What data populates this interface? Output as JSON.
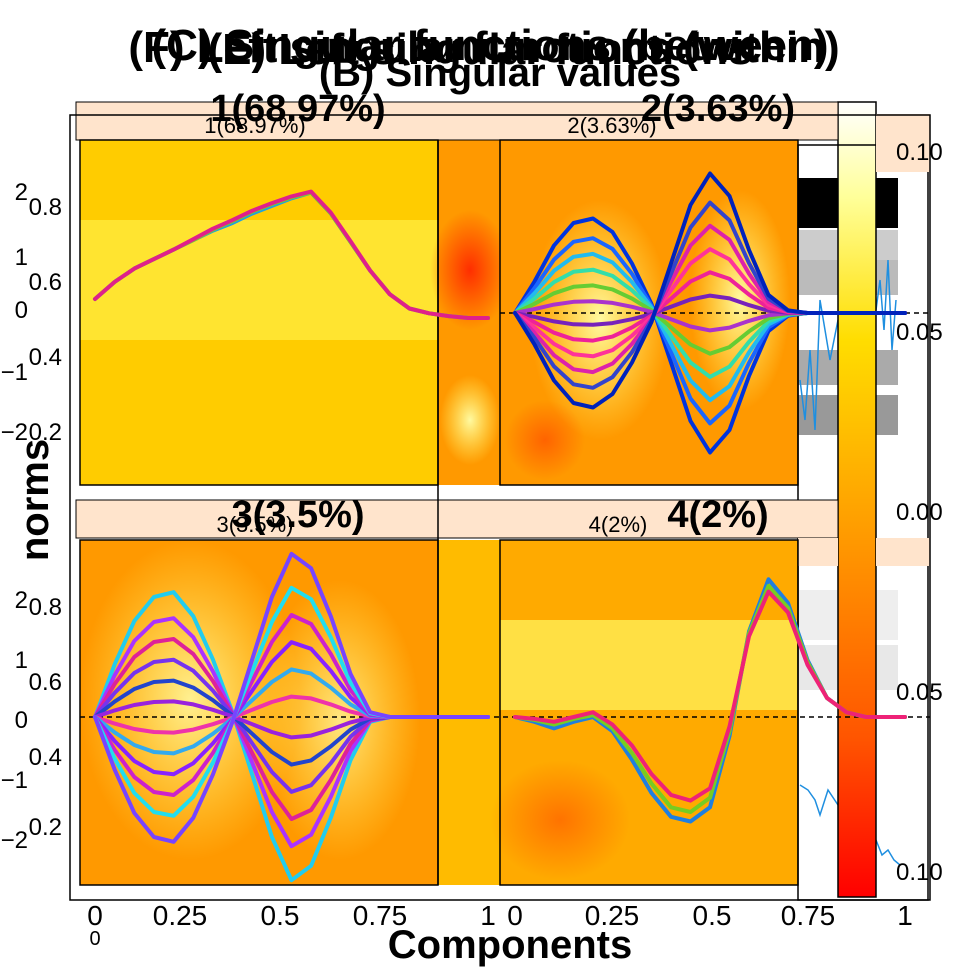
{
  "titles": {
    "F": "(F) Left singular functions (within)",
    "C": "(C) Singular functions (between)",
    "E": "(E) Left singular functions",
    "B": "(B) Singular values"
  },
  "axis": {
    "x_label": "Components",
    "y_label": "norms"
  },
  "chart_data": [
    {
      "id": "panel-1",
      "type": "line",
      "strip_small": "1(68.97%)",
      "strip_bold": "1(68.97%)",
      "xlim": [
        0,
        1
      ],
      "ylim": [
        -2,
        2
      ],
      "x": [
        0,
        0.05,
        0.1,
        0.15,
        0.2,
        0.25,
        0.3,
        0.35,
        0.4,
        0.45,
        0.5,
        0.55,
        0.6,
        0.65,
        0.7,
        0.75,
        0.8,
        0.85,
        0.9,
        0.95,
        1
      ],
      "series": [
        {
          "values": [
            0.2,
            0.38,
            0.52,
            0.62,
            0.72,
            0.82,
            0.92,
            1.0,
            1.1,
            1.18,
            1.26,
            1.32,
            1.1,
            0.8,
            0.5,
            0.25,
            0.1,
            0.05,
            0.02,
            0.0,
            0.0
          ],
          "color": "#1fa0e0"
        },
        {
          "values": [
            0.2,
            0.38,
            0.52,
            0.62,
            0.72,
            0.82,
            0.93,
            1.02,
            1.12,
            1.2,
            1.27,
            1.32,
            1.1,
            0.8,
            0.5,
            0.25,
            0.1,
            0.05,
            0.02,
            0.0,
            0.0
          ],
          "color": "#7fd020"
        },
        {
          "values": [
            0.2,
            0.38,
            0.52,
            0.62,
            0.72,
            0.83,
            0.94,
            1.03,
            1.13,
            1.21,
            1.28,
            1.33,
            1.11,
            0.81,
            0.5,
            0.25,
            0.1,
            0.05,
            0.02,
            0.0,
            0.0
          ],
          "color": "#e0208a"
        }
      ]
    },
    {
      "id": "panel-2",
      "type": "line",
      "strip_small": "2(3.63%)",
      "strip_bold": "2(3.63%)",
      "xlim": [
        0,
        1
      ],
      "ylim": [
        -2,
        2
      ],
      "x": [
        0,
        0.05,
        0.1,
        0.15,
        0.2,
        0.25,
        0.3,
        0.35,
        0.4,
        0.45,
        0.5,
        0.55,
        0.6,
        0.65,
        0.7,
        0.75,
        0.8,
        0.85,
        0.9,
        0.95,
        1
      ],
      "base_shape": [
        0,
        0.35,
        0.75,
        1.0,
        1.05,
        0.9,
        0.55,
        0.1,
        -0.55,
        -1.2,
        -1.55,
        -1.3,
        -0.7,
        -0.2,
        -0.03,
        0,
        0,
        0,
        0,
        0,
        0
      ],
      "amplitudes": [
        1.2,
        0.95,
        0.75,
        0.55,
        0.35,
        0.15,
        -0.15,
        -0.35,
        -0.55,
        -0.75,
        -0.95,
        -1.2
      ],
      "palette": [
        "#0033dd",
        "#1a66ff",
        "#22bbee",
        "#33ddaa",
        "#66cc33",
        "#aa33cc",
        "#7722bb",
        "#ee2299",
        "#ff3399",
        "#dd22aa",
        "#3344cc",
        "#0022bb"
      ]
    },
    {
      "id": "panel-3",
      "type": "line",
      "strip_small": "3(3.5%)",
      "strip_bold": "3(3.5%)",
      "xlim": [
        0,
        1
      ],
      "ylim": [
        -2,
        2
      ],
      "x": [
        0,
        0.05,
        0.1,
        0.15,
        0.2,
        0.25,
        0.3,
        0.35,
        0.4,
        0.45,
        0.5,
        0.55,
        0.6,
        0.65,
        0.7,
        0.75,
        0.8,
        0.85,
        0.9,
        0.95,
        1
      ],
      "base_shape": [
        0,
        0.55,
        1.0,
        1.25,
        1.3,
        1.05,
        0.6,
        0.05,
        -0.6,
        -1.25,
        -1.7,
        -1.55,
        -1.05,
        -0.45,
        -0.05,
        0,
        0,
        0,
        0,
        0,
        0
      ],
      "amplitudes": [
        1.2,
        0.95,
        0.75,
        0.55,
        0.35,
        0.15,
        -0.15,
        -0.35,
        -0.55,
        -0.75,
        -0.95,
        -1.2
      ],
      "palette": [
        "#22ccee",
        "#aa33ff",
        "#dd2299",
        "#7733ee",
        "#2244cc",
        "#9922dd",
        "#ee33aa",
        "#33aaee",
        "#8822ff",
        "#cc22cc",
        "#22ddee",
        "#7744ff"
      ]
    },
    {
      "id": "panel-4",
      "type": "line",
      "strip_small": "4(2%)",
      "strip_bold": "4(2%)",
      "xlim": [
        0,
        1
      ],
      "ylim": [
        -2,
        2
      ],
      "x": [
        0,
        0.05,
        0.1,
        0.15,
        0.2,
        0.25,
        0.3,
        0.35,
        0.4,
        0.45,
        0.5,
        0.55,
        0.6,
        0.65,
        0.7,
        0.75,
        0.8,
        0.85,
        0.9,
        0.95,
        1
      ],
      "series": [
        {
          "values": [
            0,
            -0.05,
            -0.12,
            -0.05,
            0.0,
            -0.15,
            -0.45,
            -0.8,
            -1.05,
            -1.1,
            -0.95,
            -0.2,
            0.9,
            1.45,
            1.2,
            0.6,
            0.2,
            0.05,
            0.0,
            0.0,
            0.0
          ],
          "color": "#1f7fe0"
        },
        {
          "values": [
            0,
            -0.03,
            -0.08,
            -0.02,
            0.02,
            -0.12,
            -0.38,
            -0.7,
            -0.95,
            -1.0,
            -0.85,
            -0.15,
            0.88,
            1.38,
            1.15,
            0.58,
            0.2,
            0.05,
            0.0,
            0.0,
            0.0
          ],
          "color": "#77cc22"
        },
        {
          "values": [
            0,
            -0.02,
            -0.05,
            0.0,
            0.05,
            -0.08,
            -0.3,
            -0.6,
            -0.82,
            -0.88,
            -0.75,
            -0.1,
            0.85,
            1.32,
            1.1,
            0.55,
            0.2,
            0.05,
            0.0,
            0.0,
            0.0
          ],
          "color": "#ee2277"
        }
      ]
    }
  ],
  "ticks": {
    "left_y": [
      "2",
      "1",
      "0",
      "−1",
      "−2"
    ],
    "left_y2": [
      "0.8",
      "0.6",
      "0.4",
      "0.2"
    ],
    "bottom_x": [
      "0",
      "0.25",
      "0.5",
      "0.75",
      "1"
    ],
    "right_y": [
      "0.10",
      "0.05",
      "0.00",
      "0.05",
      "0.10"
    ]
  },
  "colors": {
    "strip_bg": "#ffe4cc",
    "heat_low": "#ff2200",
    "heat_mid": "#ff9900",
    "heat_high": "#ffff66"
  }
}
